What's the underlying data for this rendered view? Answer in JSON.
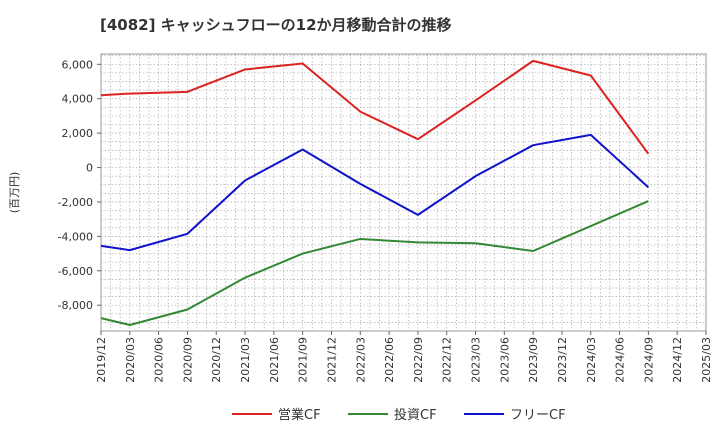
{
  "chart_data": {
    "type": "line",
    "title": "[4082]  キャッシュフローの12か月移動合計の推移",
    "ylabel": "(百万円)",
    "xlabel": "",
    "ylim": [
      -9500,
      6600
    ],
    "y_ticks": [
      6000,
      4000,
      2000,
      0,
      -2000,
      -4000,
      -6000,
      -8000
    ],
    "y_tick_labels": [
      "6,000",
      "4,000",
      "2,000",
      "0",
      "-2,000",
      "-4,000",
      "-6,000",
      "-8,000"
    ],
    "x_tick_labels": [
      "2019/12",
      "2020/03",
      "2020/06",
      "2020/09",
      "2020/12",
      "2021/03",
      "2021/06",
      "2021/09",
      "2021/12",
      "2022/03",
      "2022/06",
      "2022/09",
      "2022/12",
      "2023/03",
      "2023/06",
      "2023/09",
      "2023/12",
      "2024/03",
      "2024/06",
      "2024/09",
      "2024/12",
      "2025/03"
    ],
    "grid": true,
    "legend_position": "bottom",
    "series": [
      {
        "name": "営業CF",
        "color": "#dd2222",
        "points": [
          [
            0,
            4200
          ],
          [
            1,
            4300
          ],
          [
            3,
            4400
          ],
          [
            5,
            5700
          ],
          [
            7,
            6050
          ],
          [
            9,
            3250
          ],
          [
            11,
            1650
          ],
          [
            13,
            3900
          ],
          [
            15,
            6200
          ],
          [
            17,
            5350
          ],
          [
            19,
            800
          ]
        ]
      },
      {
        "name": "投資CF",
        "color": "#338833",
        "points": [
          [
            0,
            -8750
          ],
          [
            1,
            -9150
          ],
          [
            3,
            -8250
          ],
          [
            5,
            -6400
          ],
          [
            7,
            -5000
          ],
          [
            9,
            -4150
          ],
          [
            11,
            -4350
          ],
          [
            13,
            -4400
          ],
          [
            15,
            -4850
          ],
          [
            17,
            -3400
          ],
          [
            19,
            -1950
          ]
        ]
      },
      {
        "name": "フリーCF",
        "color": "#1111cc",
        "points": [
          [
            0,
            -4550
          ],
          [
            1,
            -4800
          ],
          [
            3,
            -3850
          ],
          [
            5,
            -750
          ],
          [
            7,
            1050
          ],
          [
            9,
            -950
          ],
          [
            11,
            -2750
          ],
          [
            13,
            -500
          ],
          [
            15,
            1300
          ],
          [
            17,
            1900
          ],
          [
            19,
            -1150
          ]
        ]
      }
    ]
  }
}
